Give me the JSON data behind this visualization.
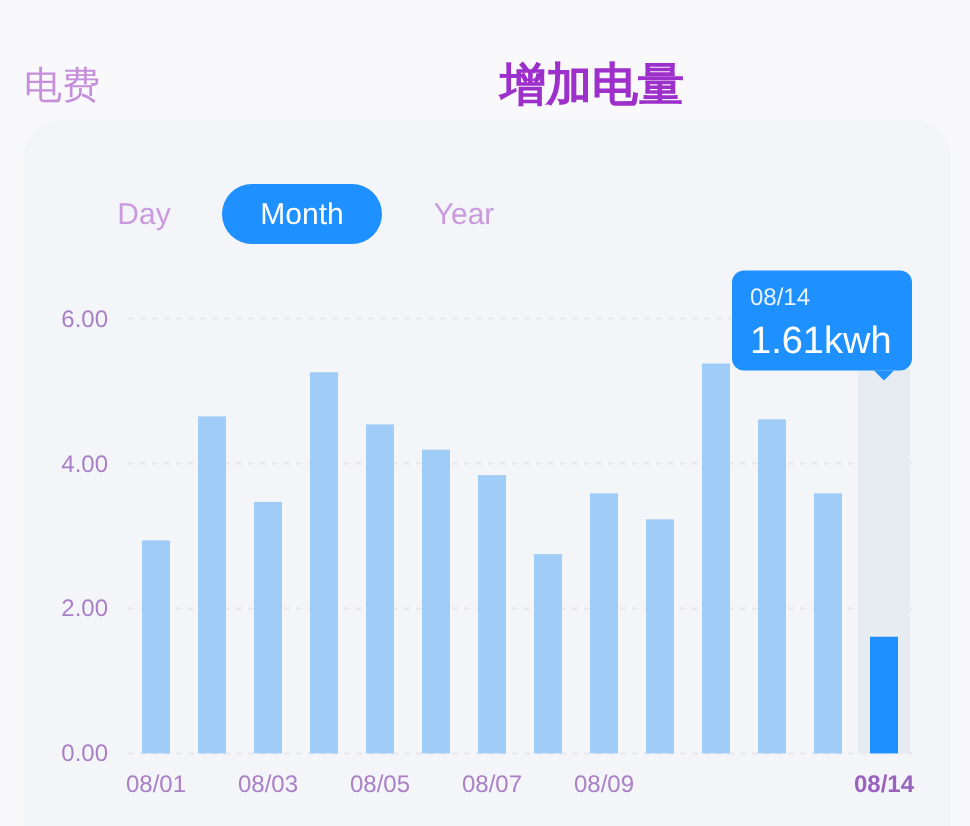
{
  "chart_data": {
    "type": "bar",
    "title": "增加电量",
    "categories": [
      "08/01",
      null,
      "08/03",
      null,
      "08/05",
      null,
      "08/07",
      null,
      "08/09",
      null,
      null,
      null,
      null,
      "08/14"
    ],
    "values": [
      2.94,
      4.65,
      3.47,
      5.26,
      4.54,
      4.19,
      3.84,
      2.75,
      3.59,
      3.23,
      5.38,
      4.61,
      3.59,
      1.61
    ],
    "colors": [
      "#a0cdf7",
      "#a0cdf7",
      "#a0cdf7",
      "#a0cdf7",
      "#a0cdf7",
      "#a0cdf7",
      "#a0cdf7",
      "#a0cdf7",
      "#a0cdf7",
      "#a0cdf7",
      "#a0cdf7",
      "#a0cdf7",
      "#a0cdf7",
      "#1e90ff"
    ],
    "ylim": [
      0,
      6
    ],
    "yticks": [
      {
        "value": 0,
        "label": "0.00"
      },
      {
        "value": 2,
        "label": "2.00"
      },
      {
        "value": 4,
        "label": "4.00"
      },
      {
        "value": 6,
        "label": "6.00"
      }
    ],
    "grid": "y",
    "bands": [
      {
        "axis": "x",
        "from": "08/14",
        "to": "08/14",
        "color": "#e7ebf2"
      }
    ],
    "annotations": [
      "电费",
      "Day",
      "Month",
      "Year",
      "1.61kwh"
    ]
  }
}
